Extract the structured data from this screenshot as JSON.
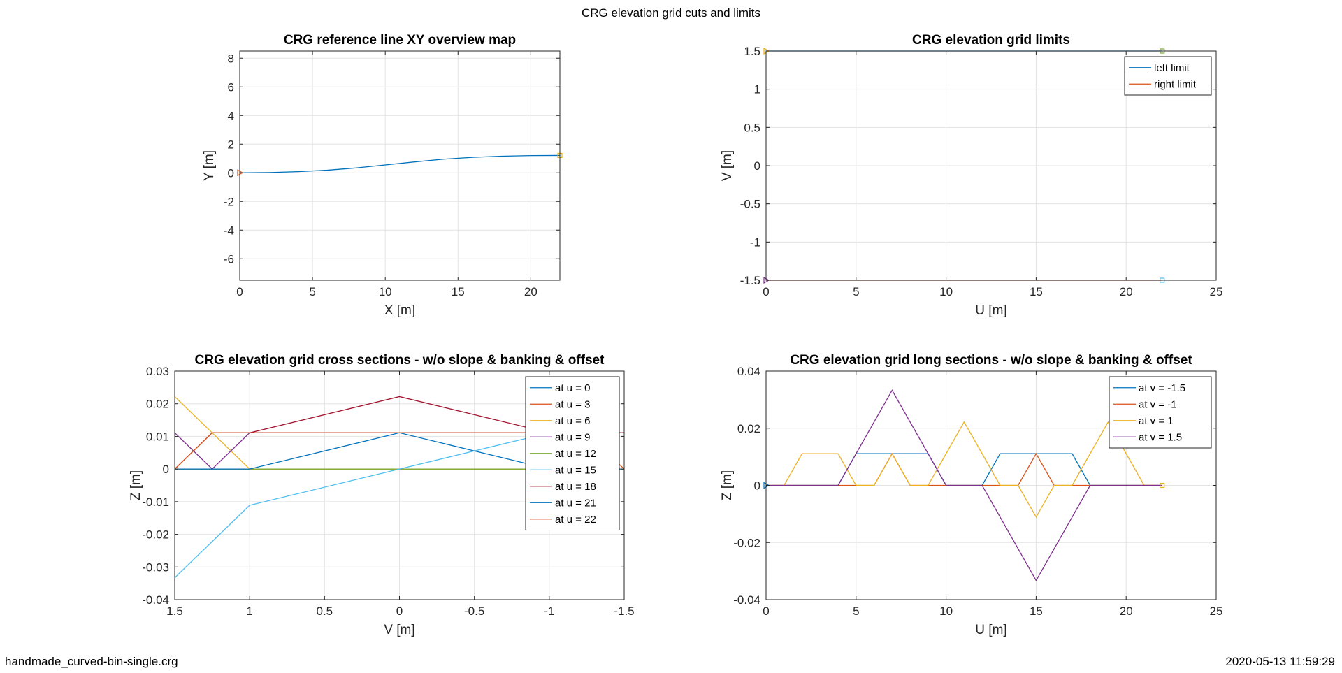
{
  "figure": {
    "suptitle": "CRG elevation grid cuts and limits",
    "footer_left": "handmade_curved-bin-single.crg",
    "footer_right": "2020-05-13 11:59:29"
  },
  "chart_data": [
    {
      "id": "xy-map",
      "type": "line",
      "title": "CRG reference line XY overview map",
      "xlabel": "X [m]",
      "ylabel": "Y [m]",
      "xlim": [
        0,
        22
      ],
      "ylim": [
        -7.5,
        8.5
      ],
      "xticks": [
        0,
        5,
        10,
        15,
        20
      ],
      "xticklabels": [
        "0",
        "5",
        "10",
        "15",
        "20"
      ],
      "yticks": [
        -6,
        -4,
        -2,
        0,
        2,
        4,
        6,
        8
      ],
      "yticklabels": [
        "-6",
        "-4",
        "-2",
        "0",
        "2",
        "4",
        "6",
        "8"
      ],
      "grid": true,
      "series": [
        {
          "color": "#0072BD",
          "x": [
            0,
            2,
            4,
            6,
            8,
            10,
            12,
            14,
            16,
            18,
            20,
            22
          ],
          "y": [
            0,
            0.02,
            0.08,
            0.18,
            0.34,
            0.55,
            0.76,
            0.95,
            1.08,
            1.16,
            1.2,
            1.21
          ]
        }
      ],
      "markers": [
        {
          "shape": "triangle-right",
          "color": "#D95319",
          "x": 0,
          "y": 0
        },
        {
          "shape": "square",
          "color": "#EDB120",
          "x": 22,
          "y": 1.21
        }
      ]
    },
    {
      "id": "grid-limits",
      "type": "line",
      "title": "CRG elevation grid limits",
      "xlabel": "U [m]",
      "ylabel": "V [m]",
      "xlim": [
        0,
        25
      ],
      "ylim": [
        -1.5,
        1.5
      ],
      "xticks": [
        0,
        5,
        10,
        15,
        20,
        25
      ],
      "xticklabels": [
        "0",
        "5",
        "10",
        "15",
        "20",
        "25"
      ],
      "yticks": [
        -1.5,
        -1,
        -0.5,
        0,
        0.5,
        1,
        1.5
      ],
      "yticklabels": [
        "-1.5",
        "-1",
        "-0.5",
        "0",
        "0.5",
        "1",
        "1.5"
      ],
      "grid": true,
      "legend": "top-right",
      "series": [
        {
          "name": "left limit",
          "color": "#0072BD",
          "x": [
            0,
            22
          ],
          "y": [
            1.5,
            1.5
          ]
        },
        {
          "name": "right limit",
          "color": "#D95319",
          "x": [
            0,
            22
          ],
          "y": [
            -1.5,
            -1.5
          ]
        }
      ],
      "markers": [
        {
          "shape": "triangle-right",
          "color": "#EDB120",
          "x": 0,
          "y": 1.5
        },
        {
          "shape": "square",
          "color": "#77AC30",
          "x": 22,
          "y": 1.5
        },
        {
          "shape": "triangle-right",
          "color": "#7E2F8E",
          "x": 0,
          "y": -1.5
        },
        {
          "shape": "square",
          "color": "#4DBEEE",
          "x": 22,
          "y": -1.5
        }
      ]
    },
    {
      "id": "cross-sections",
      "type": "line",
      "title": "CRG elevation grid cross sections - w/o slope & banking & offset",
      "xlabel": "V [m]",
      "ylabel": "Z [m]",
      "xlim": [
        1.5,
        -1.5
      ],
      "x_reversed": true,
      "ylim": [
        -0.04,
        0.03
      ],
      "xticks": [
        1.5,
        1,
        0.5,
        0,
        -0.5,
        -1,
        -1.5
      ],
      "xticklabels": [
        "1.5",
        "1",
        "0.5",
        "0",
        "-0.5",
        "-1",
        "-1.5"
      ],
      "yticks": [
        -0.04,
        -0.03,
        -0.02,
        -0.01,
        0,
        0.01,
        0.02,
        0.03
      ],
      "yticklabels": [
        "-0.04",
        "-0.03",
        "-0.02",
        "-0.01",
        "0",
        "0.01",
        "0.02",
        "0.03"
      ],
      "grid": true,
      "legend": "top-right",
      "x": [
        1.5,
        1.25,
        1,
        0,
        -1,
        -1.25,
        -1.5
      ],
      "series": [
        {
          "name": "at u = 0",
          "color": "#0072BD",
          "y": [
            0,
            0,
            0,
            0,
            0,
            0,
            0
          ]
        },
        {
          "name": "at u = 3",
          "color": "#D95319",
          "y": [
            0,
            0,
            0,
            0,
            0,
            0,
            0
          ]
        },
        {
          "name": "at u = 6",
          "color": "#EDB120",
          "y": [
            0.0222,
            0.0111,
            0,
            0,
            0,
            0,
            0
          ]
        },
        {
          "name": "at u = 9",
          "color": "#7E2F8E",
          "y": [
            0.0111,
            0,
            0.0111,
            0.0111,
            0.0111,
            0.0111,
            0.0111
          ]
        },
        {
          "name": "at u = 12",
          "color": "#77AC30",
          "y": [
            0,
            0,
            0,
            0,
            0,
            0,
            0
          ]
        },
        {
          "name": "at u = 15",
          "color": "#4DBEEE",
          "y": [
            -0.0333,
            -0.0222,
            -0.0111,
            0,
            0.0111,
            0.0111,
            0.0111
          ]
        },
        {
          "name": "at u = 18",
          "color": "#A2142F",
          "y": [
            0,
            0.0111,
            0.0111,
            0.0222,
            0.0111,
            0.0111,
            0.0111
          ]
        },
        {
          "name": "at u = 21",
          "color": "#0072BD",
          "y": [
            0,
            0,
            0,
            0.0111,
            0,
            0,
            0
          ]
        },
        {
          "name": "at u = 22",
          "color": "#D95319",
          "y": [
            0,
            0.0111,
            0.0111,
            0.0111,
            0.0111,
            0.0111,
            0
          ]
        }
      ]
    },
    {
      "id": "long-sections",
      "type": "line",
      "title": "CRG elevation grid long sections - w/o slope & banking & offset",
      "xlabel": "U [m]",
      "ylabel": "Z [m]",
      "xlim": [
        0,
        25
      ],
      "ylim": [
        -0.04,
        0.04
      ],
      "xticks": [
        0,
        5,
        10,
        15,
        20,
        25
      ],
      "xticklabels": [
        "0",
        "5",
        "10",
        "15",
        "20",
        "25"
      ],
      "yticks": [
        -0.04,
        -0.02,
        0,
        0.02,
        0.04
      ],
      "yticklabels": [
        "-0.04",
        "-0.02",
        "0",
        "0.02",
        "0.04"
      ],
      "grid": true,
      "legend": "top-right",
      "series": [
        {
          "name": "at v = -1.5",
          "color": "#0072BD",
          "x": [
            0,
            1,
            2,
            3,
            4,
            5,
            6,
            7,
            8,
            9,
            10,
            11,
            12,
            13,
            14,
            15,
            16,
            17,
            18,
            19,
            20,
            21,
            22
          ],
          "y": [
            0,
            0,
            0,
            0,
            0,
            0.0111,
            0.0111,
            0.0111,
            0.0111,
            0.0111,
            0,
            0,
            0,
            0.0111,
            0.0111,
            0.0111,
            0.0111,
            0.0111,
            0,
            0,
            0,
            0,
            0
          ]
        },
        {
          "name": "at v = -1",
          "color": "#D95319",
          "x": [
            0,
            1,
            2,
            3,
            4,
            5,
            6,
            7,
            8,
            9,
            10,
            11,
            12,
            13,
            14,
            15,
            16,
            17,
            18,
            19,
            20,
            21,
            22
          ],
          "y": [
            0,
            0,
            0,
            0,
            0,
            0,
            0,
            0.0111,
            0,
            0,
            0,
            0,
            0,
            0,
            0,
            0.0111,
            0,
            0,
            0,
            0,
            0,
            0,
            0
          ]
        },
        {
          "name": "at v = 1",
          "color": "#EDB120",
          "x": [
            0,
            1,
            2,
            3,
            4,
            5,
            6,
            7,
            8,
            9,
            10,
            11,
            12,
            13,
            14,
            15,
            16,
            17,
            18,
            19,
            20,
            21,
            22
          ],
          "y": [
            0,
            0,
            0.0111,
            0.0111,
            0.0111,
            0,
            0,
            0.0111,
            0,
            0,
            0.0111,
            0.0222,
            0.0111,
            0,
            0,
            -0.0111,
            0,
            0,
            0.0111,
            0.0222,
            0.0111,
            0,
            0
          ]
        },
        {
          "name": "at v = 1.5",
          "color": "#7E2F8E",
          "x": [
            0,
            4,
            7,
            10,
            12,
            15,
            18,
            22
          ],
          "y": [
            0,
            0,
            0.0333,
            0,
            0,
            -0.0333,
            0,
            0
          ]
        }
      ],
      "markers": [
        {
          "shape": "triangle-right",
          "color": "#0072BD",
          "x": 0,
          "y": 0
        },
        {
          "shape": "square",
          "color": "#EDB120",
          "x": 22,
          "y": 0
        }
      ]
    }
  ]
}
